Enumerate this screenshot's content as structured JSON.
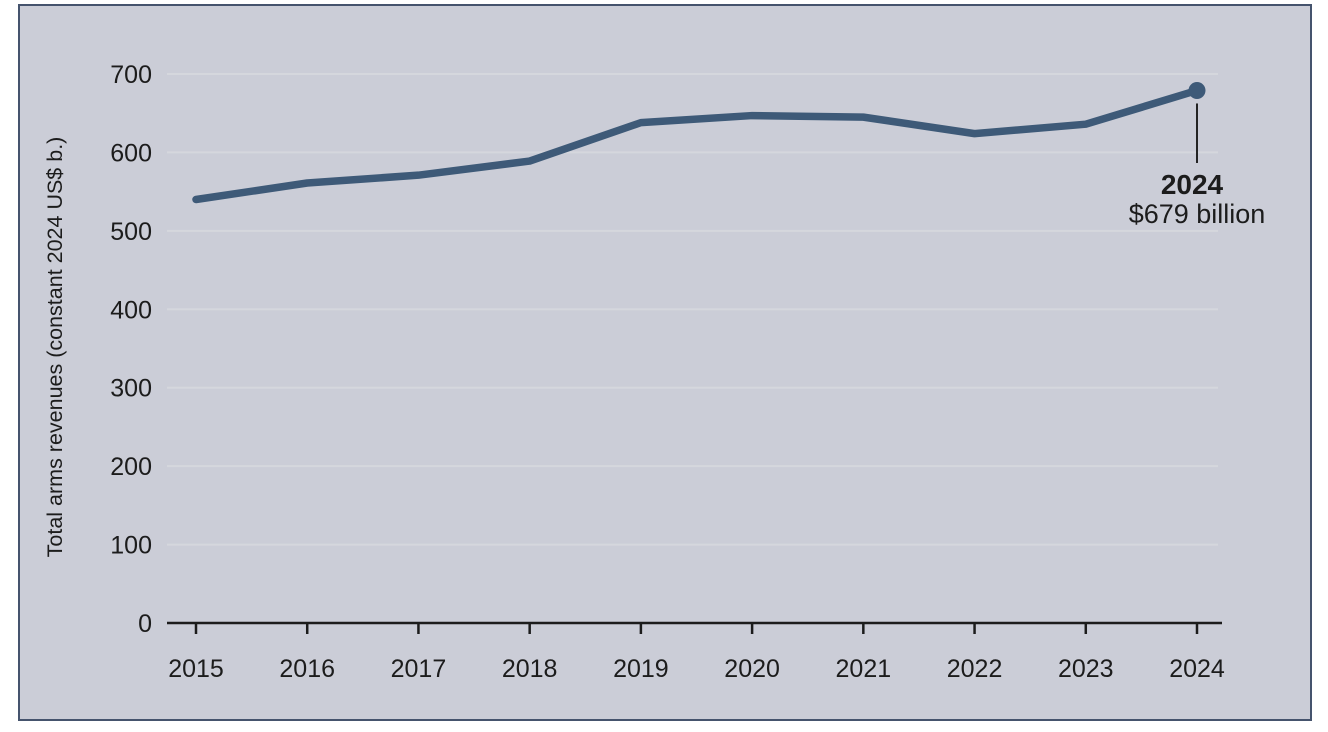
{
  "figure": {
    "outer_background": "#ffffff",
    "panel_background": "#cbcdd7",
    "panel_border_color": "#45536d"
  },
  "chart_data": {
    "type": "line",
    "title": "",
    "xlabel": "",
    "ylabel": "Total arms revenues (constant 2024 US$ b.)",
    "x": [
      2015,
      2016,
      2017,
      2018,
      2019,
      2020,
      2021,
      2022,
      2023,
      2024
    ],
    "series": [
      {
        "name": "Total arms revenues (constant 2024 US$ b.)",
        "values": [
          540,
          561,
          571,
          589,
          638,
          647,
          645,
          624,
          636,
          679
        ]
      }
    ],
    "ylim": [
      0,
      700
    ],
    "yticks": [
      0,
      100,
      200,
      300,
      400,
      500,
      600,
      700
    ],
    "grid": "horizontal gridlines at 100-unit intervals, no vertical gridlines",
    "legend": "none",
    "axes": {
      "x_axis_line": true,
      "y_axis_line": false,
      "x_tick_marks": "below axis at each year"
    },
    "annotation": {
      "year_label": "2024",
      "value_label": "$679 billion",
      "x": 2024,
      "y": 679,
      "leader": "vertical line from end-point dot down to labels"
    },
    "colors": {
      "line": "#3e5a78",
      "end_dot": "#3e5a78",
      "gridline": "#d5d7dd",
      "axis": "#1c1c1c",
      "text": "#1c1c1c",
      "leader_line": "#111111"
    }
  }
}
